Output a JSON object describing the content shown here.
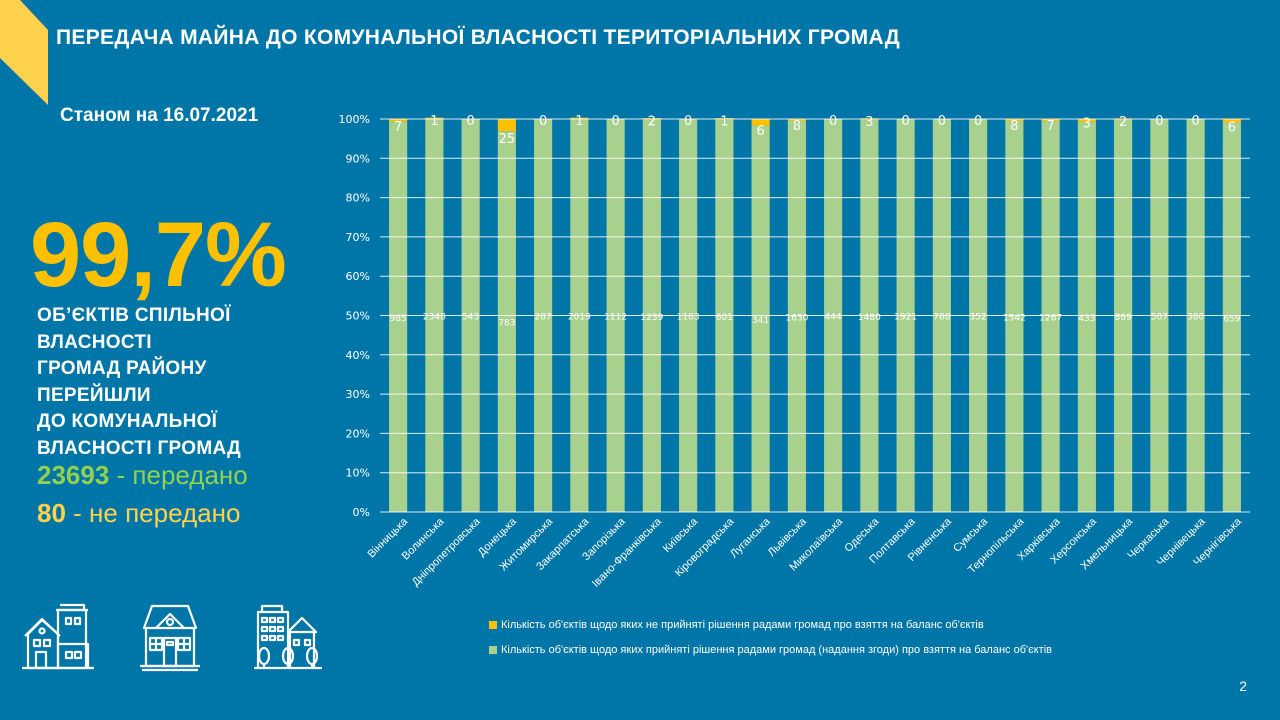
{
  "header": {
    "title": "ПЕРЕДАЧА МАЙНА ДО КОМУНАЛЬНОЇ ВЛАСНОСТІ ТЕРИТОРІАЛЬНИХ ГРОМАД",
    "date": "Станом на 16.07.2021"
  },
  "summary": {
    "percent": "99,7%",
    "description_lines": [
      "ОБ’ЄКТІВ СПІЛЬНОЇ",
      "ВЛАСНОСТІ",
      "ГРОМАД РАЙОНУ",
      "ПЕРЕЙШЛИ",
      "ДО КОМУНАЛЬНОЇ",
      "ВЛАСНОСТІ  ГРОМАД"
    ],
    "transferred_value": "23693",
    "transferred_label": " - передано",
    "not_transferred_value": "80",
    "not_transferred_label": " - не передано"
  },
  "icons": [
    "townhouses-icon",
    "house-icon",
    "city-buildings-icon"
  ],
  "page_number": "2",
  "colors": {
    "background": "#0076a8",
    "accepted": "#a9d18e",
    "not_accepted": "#ffc000",
    "accent_yellow": "#ffd24d",
    "green_text": "#92d050"
  },
  "chart_data": {
    "type": "bar",
    "stacked": "percent",
    "title": "",
    "xlabel": "",
    "ylabel": "",
    "ylim": [
      0,
      100
    ],
    "yticks": [
      "0%",
      "10%",
      "20%",
      "30%",
      "40%",
      "50%",
      "60%",
      "70%",
      "80%",
      "90%",
      "100%"
    ],
    "grid": true,
    "legend_position": "bottom",
    "categories": [
      "Вінницька",
      "Волинська",
      "Дніпропетровська",
      "Донецька",
      "Житомирська",
      "Закарпатська",
      "Запорізька",
      "Івано-Франківська",
      "Київська",
      "Кіровоградська",
      "Луганська",
      "Львівська",
      "Миколаївська",
      "Одеська",
      "Полтавська",
      "Рівненська",
      "Сумська",
      "Тернопільська",
      "Харківська",
      "Херсонська",
      "Хмельницька",
      "Черкаська",
      "Чернівецька",
      "Чернігівська"
    ],
    "series": [
      {
        "name": "Кількість об'єктів щодо яких прийняті рішення радами громад (надання згоди) про взяття на баланс об'єктів",
        "color": "#a9d18e",
        "values": [
          985,
          2348,
          543,
          783,
          287,
          2019,
          1112,
          1239,
          1163,
          601,
          341,
          1630,
          444,
          1480,
          1921,
          788,
          352,
          1542,
          1267,
          433,
          869,
          507,
          380,
          659
        ]
      },
      {
        "name": "Кількість об'єктів щодо яких не прийняті рішення радами громад про взяття на баланс об'єктів",
        "color": "#ffc000",
        "values": [
          7,
          1,
          0,
          25,
          0,
          1,
          0,
          2,
          0,
          1,
          6,
          8,
          0,
          3,
          0,
          0,
          0,
          8,
          7,
          3,
          2,
          0,
          0,
          6
        ]
      }
    ],
    "legend": [
      "Кількість об'єктів щодо яких не прийняті рішення радами громад про взяття на баланс об'єктів",
      "Кількість об'єктів щодо яких прийняті рішення радами громад (надання згоди) про взяття на баланс об'єктів"
    ]
  }
}
